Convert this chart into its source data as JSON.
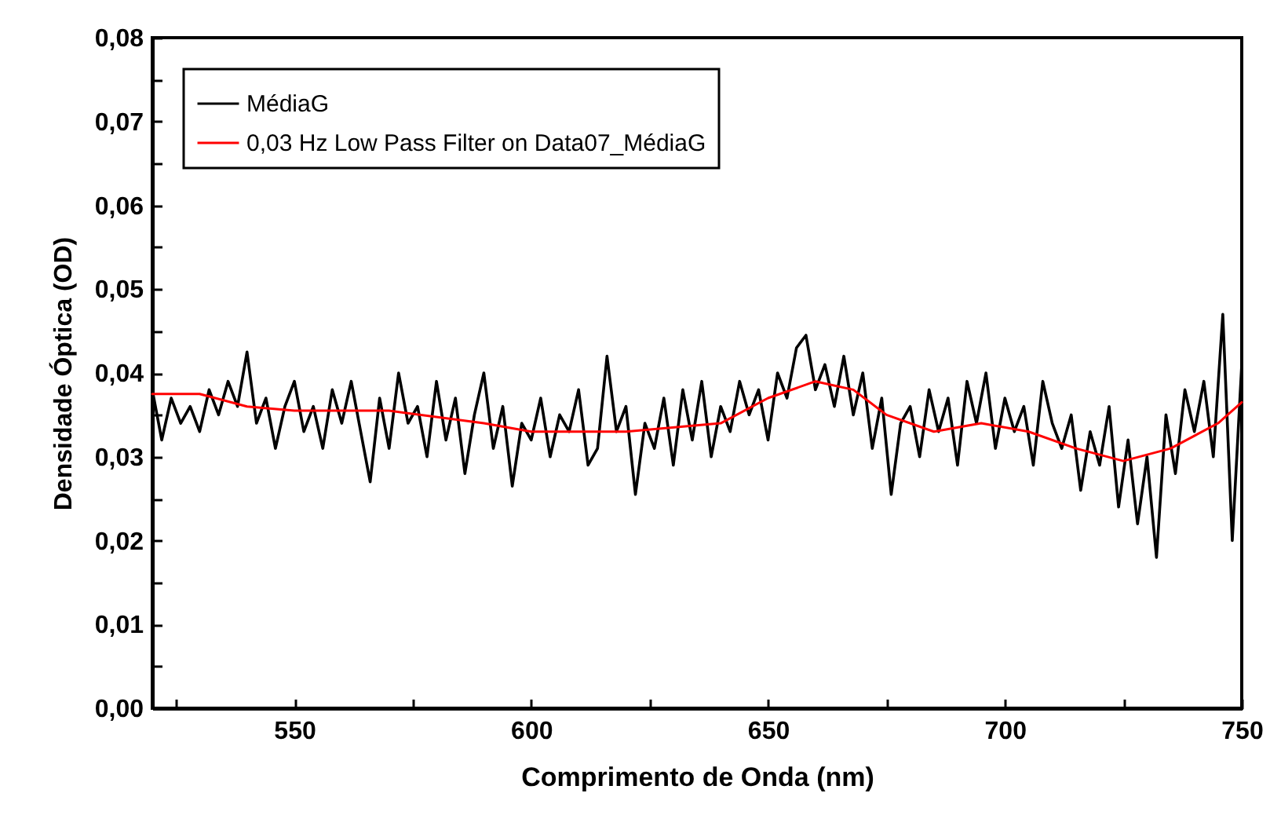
{
  "chart_data": {
    "type": "line",
    "xlabel": "Comprimento de Onda (nm)",
    "ylabel": "Densidade Óptica (OD)",
    "xlim": [
      520,
      750
    ],
    "xticks": [
      {
        "value": 525,
        "label": null
      },
      550,
      {
        "value": 575,
        "label": null
      },
      600,
      {
        "value": 625,
        "label": null
      },
      650,
      {
        "value": 675,
        "label": null
      },
      700,
      {
        "value": 725,
        "label": null
      },
      750
    ],
    "ylim": [
      0,
      0.08
    ],
    "yticks": [
      {
        "value": 0,
        "label": "0,00"
      },
      {
        "value": 0.005,
        "label": null
      },
      {
        "value": 0.01,
        "label": "0,01"
      },
      {
        "value": 0.015,
        "label": null
      },
      {
        "value": 0.02,
        "label": "0,02"
      },
      {
        "value": 0.025,
        "label": null
      },
      {
        "value": 0.03,
        "label": "0,03"
      },
      {
        "value": 0.035,
        "label": null
      },
      {
        "value": 0.04,
        "label": "0,04"
      },
      {
        "value": 0.045,
        "label": null
      },
      {
        "value": 0.05,
        "label": "0,05"
      },
      {
        "value": 0.055,
        "label": null
      },
      {
        "value": 0.06,
        "label": "0,06"
      },
      {
        "value": 0.065,
        "label": null
      },
      {
        "value": 0.07,
        "label": "0,07"
      },
      {
        "value": 0.075,
        "label": null
      },
      {
        "value": 0.08,
        "label": "0,08"
      }
    ],
    "legend": "top left",
    "series": [
      {
        "name": "MédiaG",
        "color": "#000000",
        "x": [
          520,
          522,
          524,
          526,
          528,
          530,
          532,
          534,
          536,
          538,
          540,
          542,
          544,
          546,
          548,
          550,
          552,
          554,
          556,
          558,
          560,
          562,
          564,
          566,
          568,
          570,
          572,
          574,
          576,
          578,
          580,
          582,
          584,
          586,
          588,
          590,
          592,
          594,
          596,
          598,
          600,
          602,
          604,
          606,
          608,
          610,
          612,
          614,
          616,
          618,
          620,
          622,
          624,
          626,
          628,
          630,
          632,
          634,
          636,
          638,
          640,
          642,
          644,
          646,
          648,
          650,
          652,
          654,
          656,
          658,
          660,
          662,
          664,
          666,
          668,
          670,
          672,
          674,
          676,
          678,
          680,
          682,
          684,
          686,
          688,
          690,
          692,
          694,
          696,
          698,
          700,
          702,
          704,
          706,
          708,
          710,
          712,
          714,
          716,
          718,
          720,
          722,
          724,
          726,
          728,
          730,
          732,
          734,
          736,
          738,
          740,
          742,
          744,
          746,
          748,
          750
        ],
        "values": [
          0.038,
          0.032,
          0.037,
          0.034,
          0.036,
          0.033,
          0.038,
          0.035,
          0.039,
          0.036,
          0.0425,
          0.034,
          0.037,
          0.031,
          0.036,
          0.039,
          0.033,
          0.036,
          0.031,
          0.038,
          0.034,
          0.039,
          0.033,
          0.027,
          0.037,
          0.031,
          0.04,
          0.034,
          0.036,
          0.03,
          0.039,
          0.032,
          0.037,
          0.028,
          0.035,
          0.04,
          0.031,
          0.036,
          0.0265,
          0.034,
          0.032,
          0.037,
          0.03,
          0.035,
          0.033,
          0.038,
          0.029,
          0.031,
          0.042,
          0.033,
          0.036,
          0.0255,
          0.034,
          0.031,
          0.037,
          0.029,
          0.038,
          0.032,
          0.039,
          0.03,
          0.036,
          0.033,
          0.039,
          0.035,
          0.038,
          0.032,
          0.04,
          0.037,
          0.043,
          0.0445,
          0.038,
          0.041,
          0.036,
          0.042,
          0.035,
          0.04,
          0.031,
          0.037,
          0.0255,
          0.034,
          0.036,
          0.03,
          0.038,
          0.033,
          0.037,
          0.029,
          0.039,
          0.034,
          0.04,
          0.031,
          0.037,
          0.033,
          0.036,
          0.029,
          0.039,
          0.034,
          0.031,
          0.035,
          0.026,
          0.033,
          0.029,
          0.036,
          0.024,
          0.032,
          0.022,
          0.03,
          0.018,
          0.035,
          0.028,
          0.038,
          0.033,
          0.039,
          0.03,
          0.047,
          0.02,
          0.041
        ]
      },
      {
        "name": "0,03 Hz Low Pass Filter on Data07_MédiaG",
        "color": "#ff0000",
        "x": [
          520,
          530,
          540,
          550,
          570,
          590,
          600,
          620,
          640,
          650,
          660,
          668,
          675,
          685,
          695,
          705,
          715,
          725,
          735,
          745,
          750
        ],
        "values": [
          0.0375,
          0.0375,
          0.036,
          0.0355,
          0.0355,
          0.034,
          0.033,
          0.033,
          0.034,
          0.037,
          0.039,
          0.038,
          0.035,
          0.033,
          0.034,
          0.033,
          0.031,
          0.0295,
          0.031,
          0.034,
          0.0365
        ]
      }
    ]
  }
}
